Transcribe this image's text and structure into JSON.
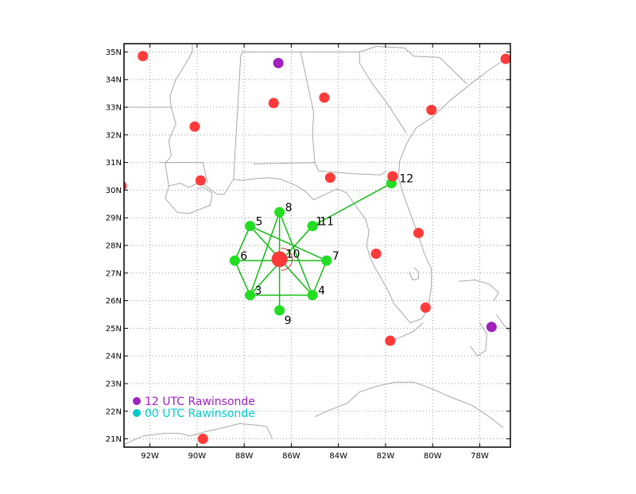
{
  "map": {
    "type": "sounding-location-map",
    "lon_range": [
      -93.1,
      -76.7
    ],
    "lat_range": [
      20.7,
      35.3
    ],
    "lon_ticks": [
      {
        "lon": -92,
        "label": "92W"
      },
      {
        "lon": -90,
        "label": "90W"
      },
      {
        "lon": -88,
        "label": "88W"
      },
      {
        "lon": -86,
        "label": "86W"
      },
      {
        "lon": -84,
        "label": "84W"
      },
      {
        "lon": -82,
        "label": "82W"
      },
      {
        "lon": -80,
        "label": "80W"
      },
      {
        "lon": -78,
        "label": "78W"
      }
    ],
    "lat_ticks": [
      {
        "lat": 21,
        "label": "21N"
      },
      {
        "lat": 22,
        "label": "22N"
      },
      {
        "lat": 23,
        "label": "23N"
      },
      {
        "lat": 24,
        "label": "24N"
      },
      {
        "lat": 25,
        "label": "25N"
      },
      {
        "lat": 26,
        "label": "26N"
      },
      {
        "lat": 27,
        "label": "27N"
      },
      {
        "lat": 28,
        "label": "28N"
      },
      {
        "lat": 29,
        "label": "29N"
      },
      {
        "lat": 30,
        "label": "30N"
      },
      {
        "lat": 31,
        "label": "31N"
      },
      {
        "lat": 32,
        "label": "32N"
      },
      {
        "lat": 33,
        "label": "33N"
      },
      {
        "lat": 34,
        "label": "34N"
      },
      {
        "lat": 35,
        "label": "35N"
      }
    ],
    "grid": true,
    "colors": {
      "dropsonde": "#22dd22",
      "track": "#11bb11",
      "station": "#ff3a3a",
      "rawinsonde_12utc": "#a020c0",
      "rawinsonde_00utc": "#00cccc",
      "coast": "#a8a8a8",
      "grid": "#9a9a9a"
    },
    "center_marker": {
      "lon": -86.5,
      "lat": 27.5,
      "label": "10"
    },
    "dropsondes": [
      {
        "id": "1",
        "label": "1",
        "lon": -85.1,
        "lat": 28.7
      },
      {
        "id": "3",
        "label": "3",
        "lon": -87.75,
        "lat": 26.2
      },
      {
        "id": "4",
        "label": "4",
        "lon": -85.1,
        "lat": 26.2
      },
      {
        "id": "5",
        "label": "5",
        "lon": -87.75,
        "lat": 28.7
      },
      {
        "id": "6",
        "label": "6",
        "lon": -88.4,
        "lat": 27.45
      },
      {
        "id": "7",
        "label": "7",
        "lon": -84.5,
        "lat": 27.45
      },
      {
        "id": "8",
        "label": "8",
        "lon": -86.5,
        "lat": 29.2
      },
      {
        "id": "9",
        "label": "9",
        "lon": -86.5,
        "lat": 25.65
      },
      {
        "id": "11",
        "label": "11",
        "lon": -85.1,
        "lat": 28.7
      },
      {
        "id": "12",
        "label": "12",
        "lon": -81.75,
        "lat": 30.25
      }
    ],
    "track_segments": [
      [
        "6",
        "5"
      ],
      [
        "5",
        "7"
      ],
      [
        "6",
        "7"
      ],
      [
        "6",
        "3"
      ],
      [
        "3",
        "4"
      ],
      [
        "4",
        "7"
      ],
      [
        "5",
        "4"
      ],
      [
        "3",
        "1"
      ],
      [
        "8",
        "9"
      ],
      [
        "3",
        "8"
      ],
      [
        "8",
        "4"
      ],
      [
        "1",
        "12"
      ]
    ],
    "stations": [
      {
        "lon": -92.3,
        "lat": 34.85
      },
      {
        "lon": -90.1,
        "lat": 32.3
      },
      {
        "lon": -86.75,
        "lat": 33.15
      },
      {
        "lon": -84.6,
        "lat": 33.35
      },
      {
        "lon": -80.05,
        "lat": 32.9
      },
      {
        "lon": -76.9,
        "lat": 34.75
      },
      {
        "lon": -93.2,
        "lat": 30.15
      },
      {
        "lon": -89.85,
        "lat": 30.35
      },
      {
        "lon": -84.35,
        "lat": 30.45
      },
      {
        "lon": -81.7,
        "lat": 30.5
      },
      {
        "lon": -80.6,
        "lat": 28.45
      },
      {
        "lon": -82.4,
        "lat": 27.7
      },
      {
        "lon": -80.3,
        "lat": 25.75
      },
      {
        "lon": -81.8,
        "lat": 24.55
      },
      {
        "lon": -89.75,
        "lat": 21.0
      }
    ],
    "rawinsondes_12utc": [
      {
        "lon": -86.55,
        "lat": 34.6
      },
      {
        "lon": -77.5,
        "lat": 25.05
      }
    ],
    "legend": [
      {
        "label": "12 UTC Rawinsonde",
        "color_key": "rawinsonde_12utc"
      },
      {
        "label": "00 UTC Rawinsonde",
        "color_key": "rawinsonde_00utc"
      }
    ],
    "coastlines": [
      {
        "kind": "land-outline",
        "points": [
          [
            -91.2,
            30.15
          ],
          [
            -90.7,
            30.25
          ],
          [
            -90.35,
            30.1
          ],
          [
            -89.85,
            30.3
          ],
          [
            -89.55,
            30.1
          ],
          [
            -89.15,
            29.85
          ],
          [
            -88.85,
            29.85
          ],
          [
            -88.45,
            30.4
          ],
          [
            -88.1,
            30.35
          ],
          [
            -87.7,
            30.4
          ],
          [
            -87.0,
            30.45
          ],
          [
            -86.45,
            30.4
          ],
          [
            -85.75,
            30.15
          ],
          [
            -85.4,
            29.95
          ],
          [
            -85.05,
            29.65
          ],
          [
            -84.55,
            29.85
          ],
          [
            -84.05,
            30.05
          ],
          [
            -83.65,
            29.9
          ],
          [
            -83.2,
            29.35
          ],
          [
            -82.85,
            28.95
          ],
          [
            -82.7,
            28.5
          ],
          [
            -82.8,
            28.0
          ],
          [
            -82.65,
            27.55
          ],
          [
            -82.45,
            27.2
          ],
          [
            -82.15,
            26.75
          ],
          [
            -81.85,
            26.3
          ],
          [
            -81.65,
            25.9
          ],
          [
            -81.25,
            25.5
          ],
          [
            -80.95,
            25.2
          ],
          [
            -80.45,
            25.35
          ],
          [
            -80.2,
            25.75
          ],
          [
            -80.05,
            26.5
          ],
          [
            -80.05,
            27.15
          ],
          [
            -80.35,
            27.7
          ],
          [
            -80.6,
            28.35
          ],
          [
            -80.9,
            29.05
          ],
          [
            -81.2,
            29.75
          ],
          [
            -81.45,
            30.45
          ],
          [
            -81.4,
            31.05
          ],
          [
            -81.1,
            31.7
          ],
          [
            -80.7,
            32.25
          ],
          [
            -80.0,
            32.65
          ],
          [
            -79.25,
            33.25
          ],
          [
            -78.45,
            33.8
          ],
          [
            -77.6,
            34.35
          ],
          [
            -77.0,
            34.7
          ],
          [
            -76.7,
            34.85
          ]
        ]
      },
      {
        "kind": "delta",
        "points": [
          [
            -91.2,
            30.15
          ],
          [
            -91.35,
            29.7
          ],
          [
            -90.85,
            29.2
          ],
          [
            -90.35,
            29.15
          ],
          [
            -89.75,
            29.35
          ],
          [
            -89.45,
            29.45
          ],
          [
            -89.35,
            29.9
          ],
          [
            -89.75,
            30.1
          ],
          [
            -90.0,
            30.05
          ]
        ]
      },
      {
        "kind": "state-border",
        "points": [
          [
            -91.2,
            30.15
          ],
          [
            -91.35,
            30.95
          ],
          [
            -91.1,
            31.25
          ],
          [
            -91.2,
            31.8
          ],
          [
            -90.9,
            32.4
          ],
          [
            -91.1,
            33.0
          ],
          [
            -91.15,
            33.4
          ],
          [
            -90.9,
            34.0
          ],
          [
            -90.5,
            34.55
          ],
          [
            -90.2,
            35.0
          ],
          [
            -90.2,
            35.3
          ]
        ]
      },
      {
        "kind": "state-border",
        "points": [
          [
            -93.1,
            33.0
          ],
          [
            -91.1,
            33.0
          ]
        ]
      },
      {
        "kind": "state-border",
        "points": [
          [
            -91.6,
            31.0
          ],
          [
            -89.75,
            31.0
          ],
          [
            -89.55,
            30.25
          ]
        ]
      },
      {
        "kind": "state-border",
        "points": [
          [
            -88.45,
            30.4
          ],
          [
            -88.35,
            31.9
          ],
          [
            -88.15,
            34.8
          ],
          [
            -88.1,
            35.0
          ]
        ]
      },
      {
        "kind": "state-border",
        "points": [
          [
            -88.1,
            35.0
          ],
          [
            -85.6,
            35.0
          ],
          [
            -84.3,
            35.0
          ],
          [
            -83.1,
            35.0
          ]
        ]
      },
      {
        "kind": "state-border",
        "points": [
          [
            -87.6,
            30.95
          ],
          [
            -85.0,
            31.0
          ],
          [
            -84.85,
            30.7
          ],
          [
            -83.5,
            30.6
          ],
          [
            -82.2,
            30.55
          ],
          [
            -81.95,
            30.7
          ]
        ]
      },
      {
        "kind": "state-border",
        "points": [
          [
            -85.0,
            31.0
          ],
          [
            -85.1,
            32.0
          ],
          [
            -85.05,
            32.8
          ],
          [
            -85.35,
            34.0
          ],
          [
            -85.6,
            35.0
          ]
        ]
      },
      {
        "kind": "state-border",
        "points": [
          [
            -81.1,
            32.05
          ],
          [
            -81.9,
            33.1
          ],
          [
            -82.6,
            33.9
          ],
          [
            -83.1,
            34.6
          ],
          [
            -83.1,
            35.0
          ]
        ]
      },
      {
        "kind": "state-border",
        "points": [
          [
            -83.1,
            35.0
          ],
          [
            -82.4,
            35.2
          ],
          [
            -81.2,
            35.15
          ],
          [
            -80.8,
            34.85
          ],
          [
            -79.7,
            34.8
          ],
          [
            -78.55,
            33.85
          ]
        ]
      },
      {
        "kind": "lake",
        "points": [
          [
            -81.0,
            27.05
          ],
          [
            -80.85,
            26.75
          ],
          [
            -80.6,
            26.8
          ],
          [
            -80.6,
            27.05
          ],
          [
            -80.8,
            27.2
          ]
        ]
      },
      {
        "kind": "bahamas",
        "points": [
          [
            -78.9,
            26.7
          ],
          [
            -78.2,
            26.75
          ],
          [
            -77.6,
            26.6
          ],
          [
            -77.2,
            26.3
          ],
          [
            -77.4,
            26.0
          ]
        ]
      },
      {
        "kind": "bahamas",
        "points": [
          [
            -78.0,
            25.2
          ],
          [
            -77.7,
            24.8
          ],
          [
            -77.75,
            24.2
          ],
          [
            -78.1,
            24.0
          ],
          [
            -78.4,
            24.35
          ]
        ]
      },
      {
        "kind": "bahamas",
        "points": [
          [
            -77.3,
            25.5
          ],
          [
            -77.0,
            25.15
          ],
          [
            -76.75,
            24.9
          ]
        ]
      },
      {
        "kind": "keys",
        "points": [
          [
            -80.4,
            25.2
          ],
          [
            -80.8,
            24.9
          ],
          [
            -81.3,
            24.7
          ],
          [
            -81.8,
            24.55
          ]
        ]
      },
      {
        "kind": "yucatan",
        "points": [
          [
            -93.1,
            20.8
          ],
          [
            -92.3,
            21.1
          ],
          [
            -91.4,
            21.2
          ],
          [
            -90.7,
            21.2
          ],
          [
            -90.3,
            21.1
          ],
          [
            -89.7,
            21.25
          ],
          [
            -88.9,
            21.4
          ],
          [
            -88.2,
            21.55
          ],
          [
            -87.5,
            21.5
          ],
          [
            -87.05,
            21.45
          ],
          [
            -86.8,
            21.0
          ]
        ]
      },
      {
        "kind": "cuba",
        "points": [
          [
            -85.0,
            21.8
          ],
          [
            -84.5,
            22.0
          ],
          [
            -83.6,
            22.3
          ],
          [
            -83.1,
            22.7
          ],
          [
            -82.4,
            22.9
          ],
          [
            -81.6,
            23.05
          ],
          [
            -80.8,
            23.05
          ],
          [
            -80.0,
            22.8
          ],
          [
            -79.2,
            22.5
          ],
          [
            -78.3,
            22.2
          ],
          [
            -77.6,
            21.8
          ],
          [
            -77.0,
            21.4
          ]
        ]
      }
    ]
  }
}
